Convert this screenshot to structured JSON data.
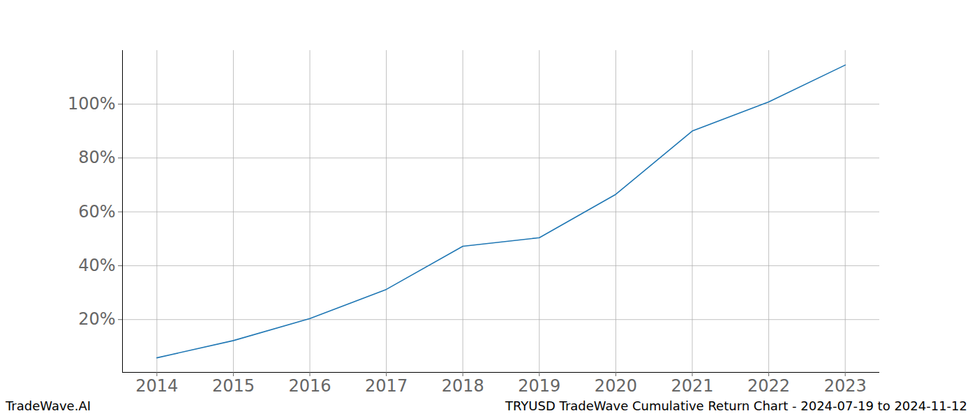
{
  "chart_data": {
    "type": "line",
    "title": "TRYUSD TradeWave Cumulative Return Chart - 2024-07-19 to 2024-11-12",
    "source": "TradeWave.AI",
    "x": [
      2014,
      2015,
      2016,
      2017,
      2018,
      2019,
      2020,
      2021,
      2022,
      2023
    ],
    "series": [
      {
        "name": "TRYUSD",
        "color": "#1f77b4",
        "values": [
          5.8,
          12.2,
          20.4,
          31.2,
          47.2,
          50.4,
          66.5,
          90.0,
          100.8,
          114.5
        ]
      }
    ],
    "xlim": [
      2013.55,
      2023.45
    ],
    "xticks": [
      2014,
      2015,
      2016,
      2017,
      2018,
      2019,
      2020,
      2021,
      2022,
      2023
    ],
    "ylim": [
      0.4,
      119.9
    ],
    "yticks": [
      {
        "value": 20,
        "label": "20%"
      },
      {
        "value": 40,
        "label": "40%"
      },
      {
        "value": 60,
        "label": "60%"
      },
      {
        "value": 80,
        "label": "80%"
      },
      {
        "value": 100,
        "label": "100%"
      }
    ],
    "grid": true
  }
}
